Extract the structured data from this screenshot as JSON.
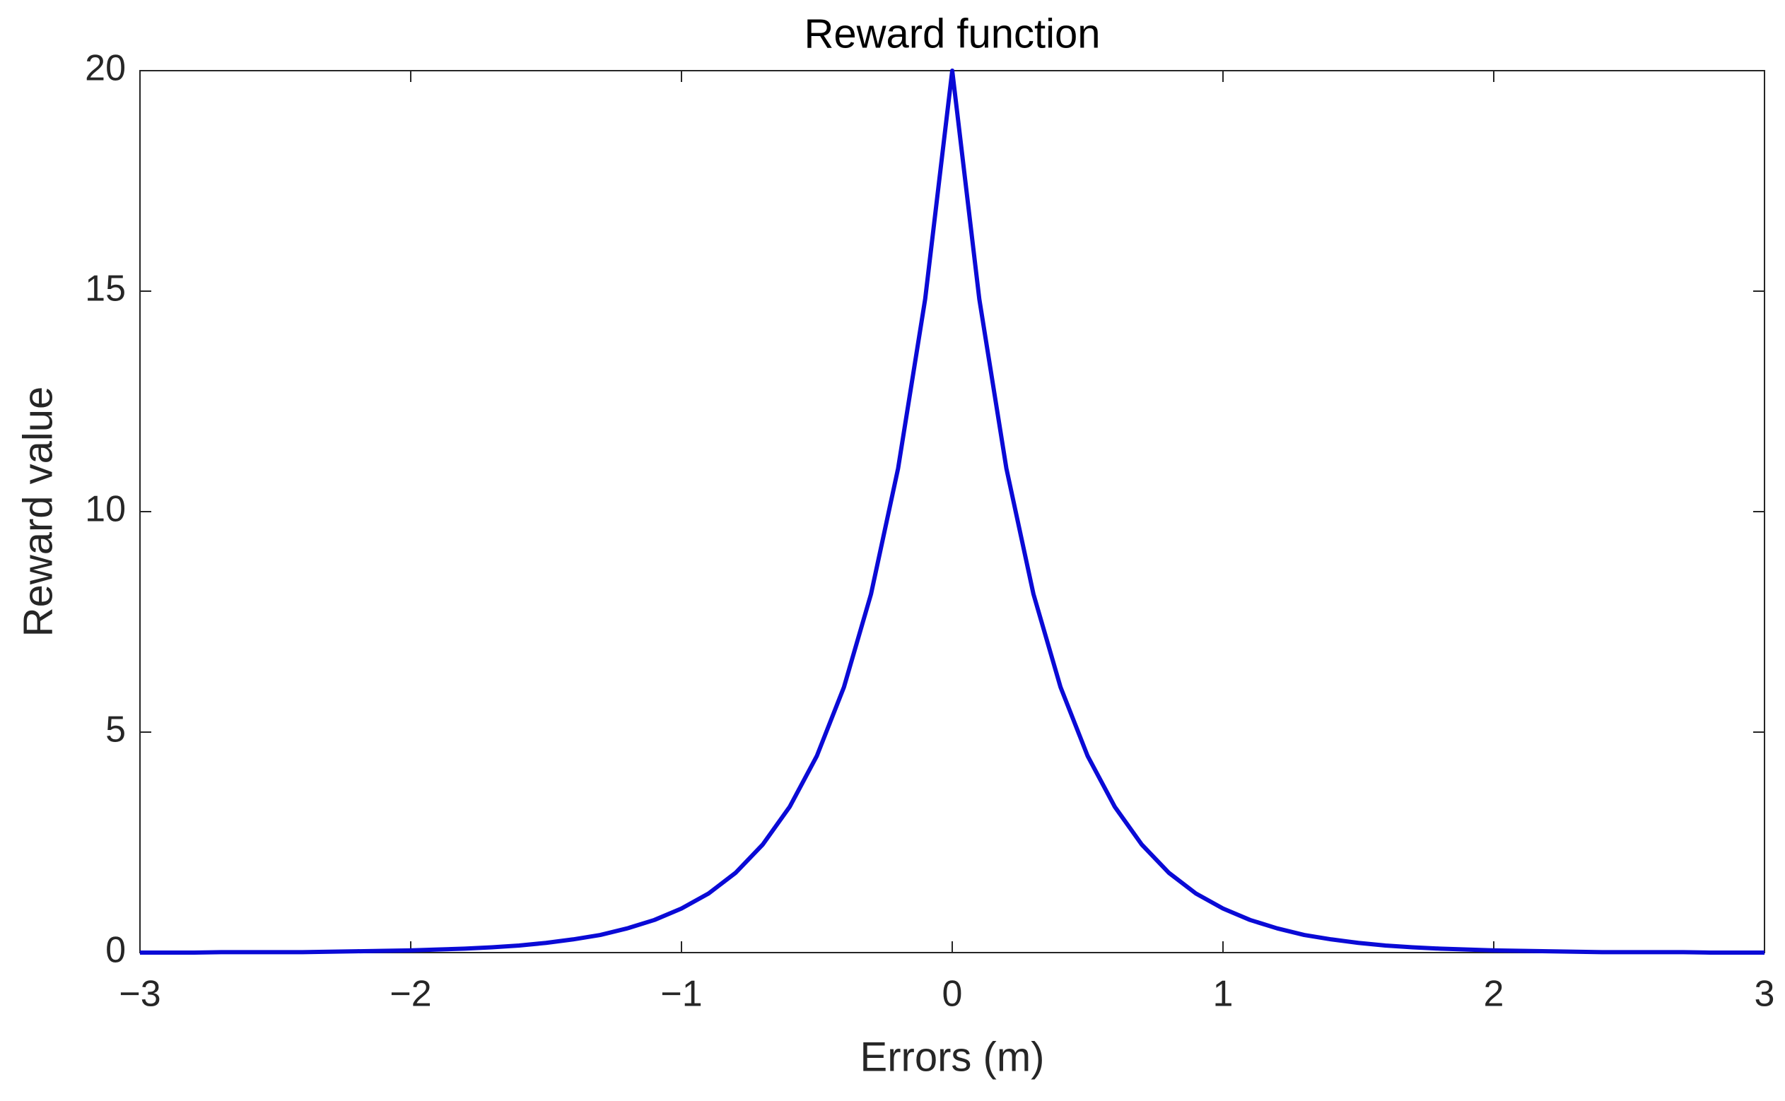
{
  "chart_data": {
    "type": "line",
    "title": "Reward function",
    "x_label": "Errors (m)",
    "y_label": "Reward value",
    "x": [
      -3.0,
      -2.9,
      -2.8,
      -2.7,
      -2.6,
      -2.5,
      -2.4,
      -2.3,
      -2.2,
      -2.1,
      -2.0,
      -1.9,
      -1.8,
      -1.7,
      -1.6,
      -1.5,
      -1.4,
      -1.3,
      -1.2,
      -1.1,
      -1.0,
      -0.9,
      -0.8,
      -0.7,
      -0.6,
      -0.5,
      -0.4,
      -0.3,
      -0.2,
      -0.1,
      0.0,
      0.1,
      0.2,
      0.3,
      0.4,
      0.5,
      0.6,
      0.7,
      0.8,
      0.9,
      1.0,
      1.1,
      1.2,
      1.3,
      1.4,
      1.5,
      1.6,
      1.7,
      1.8,
      1.9,
      2.0,
      2.1,
      2.2,
      2.3,
      2.4,
      2.5,
      2.6,
      2.7,
      2.8,
      2.9,
      3.0
    ],
    "values": [
      0,
      0,
      0,
      0.01,
      0.01,
      0.01,
      0.01,
      0.02,
      0.03,
      0.04,
      0.05,
      0.07,
      0.09,
      0.12,
      0.16,
      0.22,
      0.3,
      0.4,
      0.55,
      0.74,
      1.0,
      1.34,
      1.81,
      2.45,
      3.31,
      4.46,
      6.02,
      8.13,
      10.98,
      14.82,
      20,
      14.82,
      10.98,
      8.13,
      6.02,
      4.46,
      3.31,
      2.45,
      1.81,
      1.34,
      1.0,
      0.74,
      0.55,
      0.4,
      0.3,
      0.22,
      0.16,
      0.12,
      0.09,
      0.07,
      0.05,
      0.04,
      0.03,
      0.02,
      0.01,
      0.01,
      0.01,
      0.01,
      0,
      0,
      0
    ],
    "color": "#0a0ad6",
    "xlim": [
      -3,
      3
    ],
    "ylim": [
      0,
      20
    ],
    "xticks": [
      {
        "value": -3,
        "label": "−3"
      },
      {
        "value": -2,
        "label": "−2"
      },
      {
        "value": -1,
        "label": "−1"
      },
      0,
      1,
      2,
      3
    ],
    "yticks": [
      0,
      5,
      10,
      15,
      20
    ],
    "grid": false
  }
}
